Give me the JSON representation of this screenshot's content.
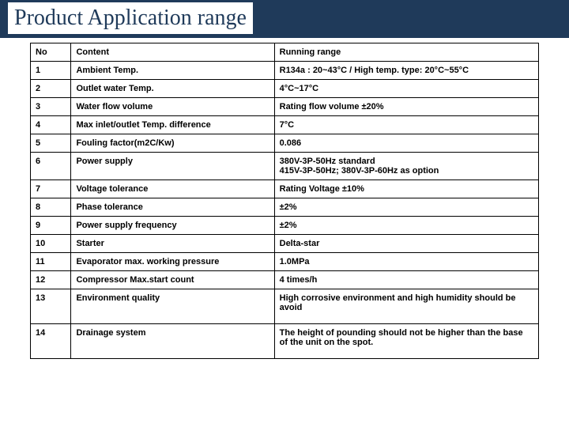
{
  "header": {
    "title": "Product Application range"
  },
  "table": {
    "columns": [
      "No",
      "Content",
      "Running range"
    ],
    "rows": [
      [
        "1",
        "Ambient Temp.",
        "R134a : 20~43°C   /   High temp. type: 20°C~55°C"
      ],
      [
        "2",
        "Outlet water Temp.",
        "4°C~17°C"
      ],
      [
        "3",
        "Water flow volume",
        "Rating flow volume ±20%"
      ],
      [
        "4",
        "Max inlet/outlet Temp. difference",
        "7°C"
      ],
      [
        "5",
        "Fouling factor(m2C/Kw)",
        "0.086"
      ],
      [
        "6",
        "Power supply",
        "380V-3P-50Hz standard\n415V-3P-50Hz; 380V-3P-60Hz as option"
      ],
      [
        "7",
        "Voltage tolerance",
        "Rating Voltage  ±10%"
      ],
      [
        "8",
        "Phase tolerance",
        "±2%"
      ],
      [
        "9",
        "Power supply frequency",
        "±2%"
      ],
      [
        "10",
        "Starter",
        "Delta-star"
      ],
      [
        "11",
        "Evaporator max. working pressure",
        "1.0MPa"
      ],
      [
        "12",
        "Compressor Max.start count",
        "4 times/h"
      ],
      [
        "13",
        "Environment quality",
        "High corrosive environment and high humidity should be avoid"
      ],
      [
        "14",
        "Drainage system",
        "The height of pounding should not be higher than the base of the unit on the spot."
      ]
    ]
  },
  "colors": {
    "header_bg": "#1f3a5a",
    "header_text": "#1f3a5a",
    "body_bg": "#ffffff",
    "border": "#000000",
    "text": "#000000"
  }
}
